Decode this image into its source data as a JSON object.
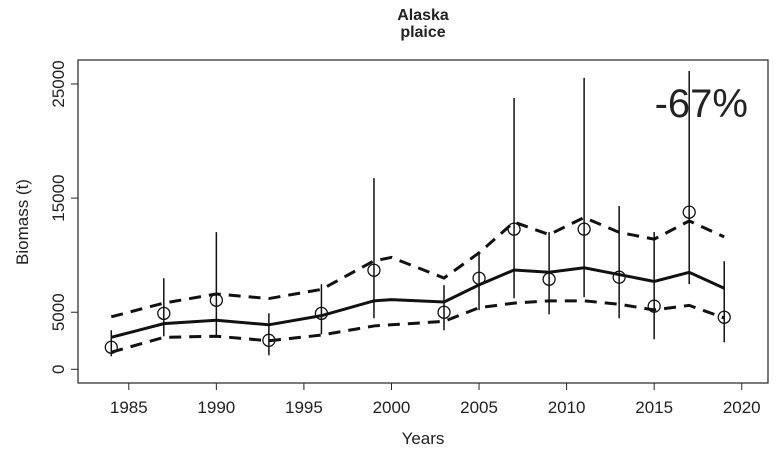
{
  "chart_data": {
    "type": "scatter",
    "title": [
      "Alaska",
      "plaice"
    ],
    "x_label": "Years",
    "y_label": "Biomass (t)",
    "annotation": "-67%",
    "annotation_color": "#c00000",
    "xlim": [
      1982.1,
      2021.5
    ],
    "ylim": [
      -1200,
      27100
    ],
    "xticks": [
      1985,
      1990,
      1995,
      2000,
      2005,
      2010,
      2015,
      2020
    ],
    "yticks": [
      0,
      5000,
      15000,
      25000
    ],
    "x": [
      1984,
      1987,
      1990,
      1993,
      1996,
      1999,
      2003,
      2005,
      2007,
      2009,
      2011,
      2013,
      2015,
      2017,
      2019
    ],
    "values": [
      1930,
      4900,
      6050,
      2540,
      4900,
      8680,
      5000,
      7980,
      12280,
      7890,
      12280,
      8070,
      5530,
      13770,
      4560
    ],
    "lower": [
      1140,
      2890,
      2890,
      1230,
      3070,
      4470,
      3420,
      5180,
      6230,
      4820,
      6320,
      4470,
      2630,
      7460,
      2370
    ],
    "upper": [
      3420,
      7980,
      12020,
      4910,
      7460,
      16750,
      7370,
      10180,
      23770,
      12020,
      25530,
      14300,
      12020,
      26140,
      9470
    ],
    "trend": {
      "x": [
        1984,
        1987,
        1990,
        1993,
        1996,
        1999,
        2000,
        2003,
        2005,
        2007,
        2009,
        2011,
        2013,
        2015,
        2017,
        2019
      ],
      "mid": [
        2800,
        4000,
        4300,
        3900,
        4700,
        6000,
        6100,
        5900,
        7400,
        8700,
        8500,
        8900,
        8300,
        7700,
        8500,
        7100
      ],
      "upper": [
        4600,
        5800,
        6600,
        6200,
        7000,
        9500,
        9800,
        8000,
        10200,
        12900,
        11800,
        13300,
        12000,
        11400,
        13000,
        11600
      ],
      "lower": [
        1500,
        2800,
        2900,
        2500,
        3000,
        3800,
        3900,
        4200,
        5400,
        5800,
        6000,
        6000,
        5700,
        5200,
        5600,
        4500
      ]
    }
  }
}
